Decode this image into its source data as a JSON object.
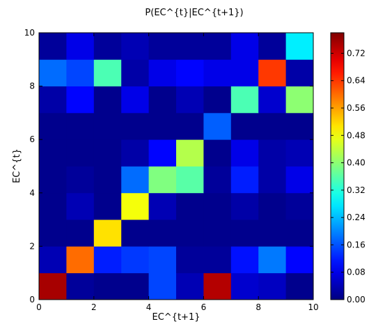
{
  "chart_data": {
    "type": "heatmap",
    "title": "P(EC^{t}|EC^{t+1})",
    "xlabel": "EC^{t+1}",
    "ylabel": "EC^{t}",
    "xlim": [
      0,
      10
    ],
    "ylim": [
      0,
      10
    ],
    "x_ticks": [
      "0",
      "2",
      "4",
      "6",
      "8",
      "10"
    ],
    "y_ticks": [
      "0",
      "2",
      "4",
      "6",
      "8",
      "10"
    ],
    "colorbar_ticks": [
      "0.00",
      "0.08",
      "0.16",
      "0.24",
      "0.32",
      "0.40",
      "0.48",
      "0.56",
      "0.64",
      "0.72"
    ],
    "colorbar_range": [
      0,
      0.78
    ],
    "colormap": "jet",
    "grid": false,
    "rows": [
      [
        0.75,
        0.02,
        0.01,
        0.01,
        0.15,
        0.04,
        0.74,
        0.06,
        0.05,
        0.01
      ],
      [
        0.04,
        0.6,
        0.12,
        0.14,
        0.15,
        0.02,
        0.02,
        0.11,
        0.19,
        0.1
      ],
      [
        0.01,
        0.01,
        0.51,
        0.01,
        0.01,
        0.01,
        0.01,
        0.01,
        0.01,
        0.01
      ],
      [
        0.01,
        0.04,
        0.01,
        0.48,
        0.04,
        0.01,
        0.01,
        0.03,
        0.01,
        0.02
      ],
      [
        0.01,
        0.02,
        0.01,
        0.18,
        0.39,
        0.36,
        0.02,
        0.12,
        0.03,
        0.08
      ],
      [
        0.01,
        0.01,
        0.01,
        0.03,
        0.1,
        0.43,
        0.01,
        0.08,
        0.03,
        0.04
      ],
      [
        0.01,
        0.01,
        0.01,
        0.01,
        0.01,
        0.01,
        0.17,
        0.01,
        0.01,
        0.01
      ],
      [
        0.03,
        0.1,
        0.01,
        0.08,
        0.01,
        0.04,
        0.01,
        0.35,
        0.06,
        0.4
      ],
      [
        0.18,
        0.15,
        0.35,
        0.03,
        0.08,
        0.1,
        0.08,
        0.08,
        0.64,
        0.03
      ],
      [
        0.02,
        0.08,
        0.02,
        0.04,
        0.02,
        0.02,
        0.02,
        0.08,
        0.02,
        0.28
      ]
    ]
  }
}
